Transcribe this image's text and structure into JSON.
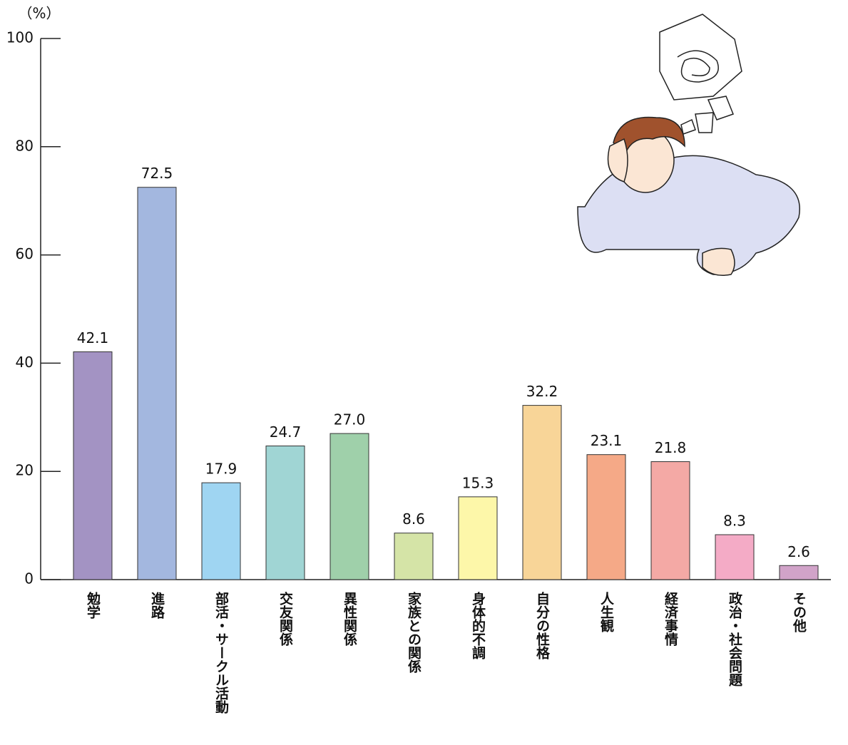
{
  "chart_data": {
    "type": "bar",
    "ylabel": "（%）",
    "categories": [
      "勉学",
      "進路",
      "部活・サークル活動",
      "交友関係",
      "異性関係",
      "家族との関係",
      "身体的不調",
      "自分の性格",
      "人生観",
      "経済事情",
      "政治・社会問題",
      "その他"
    ],
    "values": [
      42.1,
      72.5,
      17.9,
      24.7,
      27.0,
      8.6,
      15.3,
      32.2,
      23.1,
      21.8,
      8.3,
      2.6
    ],
    "value_labels": [
      "42.1",
      "72.5",
      "17.9",
      "24.7",
      "27.0",
      "8.6",
      "15.3",
      "32.2",
      "23.1",
      "21.8",
      "8.3",
      "2.6"
    ],
    "colors": [
      "#a393c3",
      "#a3b7df",
      "#9fd5f2",
      "#a0d5d4",
      "#9fd0aa",
      "#d5e4a7",
      "#fdf7a9",
      "#f8d598",
      "#f5a987",
      "#f4a9a5",
      "#f4abc6",
      "#d1a3c9"
    ],
    "ylim": [
      0,
      100
    ],
    "yticks": [
      0,
      20,
      40,
      60,
      80,
      100
    ]
  }
}
